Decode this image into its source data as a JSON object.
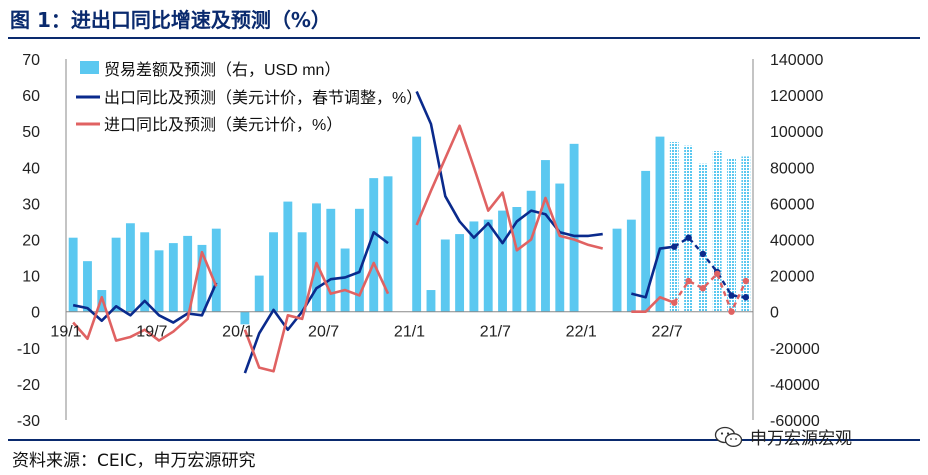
{
  "figure": {
    "title": "图 1：进出口同比增速及预测（%）",
    "source": "资料来源：CEIC，申万宏源研究",
    "watermark": "申万宏源宏观",
    "watermark_icon": "wechat-icon"
  },
  "chart_data": {
    "type": "bar-line",
    "left_axis": {
      "min": -30,
      "max": 70,
      "ticks": [
        -30,
        -20,
        -10,
        0,
        10,
        20,
        30,
        40,
        50,
        60,
        70
      ]
    },
    "right_axis": {
      "min": -60000,
      "max": 140000,
      "ticks": [
        "-60000",
        "-40000",
        "-20000",
        "0",
        "20000",
        "40000",
        "60000",
        "80000",
        "100000",
        "120000",
        "140000"
      ]
    },
    "x_tick_labels": [
      "19/1",
      "19/7",
      "20/1",
      "20/7",
      "21/1",
      "21/7",
      "22/1",
      "22/7"
    ],
    "months": [
      "2019-01",
      "2019-02",
      "2019-03",
      "2019-04",
      "2019-05",
      "2019-06",
      "2019-07",
      "2019-08",
      "2019-09",
      "2019-10",
      "2019-11",
      "2019-12",
      "2020-01",
      "2020-02",
      "2020-03",
      "2020-04",
      "2020-05",
      "2020-06",
      "2020-07",
      "2020-08",
      "2020-09",
      "2020-10",
      "2020-11",
      "2020-12",
      "2021-01",
      "2021-02",
      "2021-03",
      "2021-04",
      "2021-05",
      "2021-06",
      "2021-07",
      "2021-08",
      "2021-09",
      "2021-10",
      "2021-11",
      "2021-12",
      "2022-01",
      "2022-02",
      "2022-03",
      "2022-04",
      "2022-05",
      "2022-06",
      "2022-07",
      "2022-08",
      "2022-09",
      "2022-10",
      "2022-11",
      "2022-12"
    ],
    "forecast_start_index": 42,
    "legend": [
      "贸易差额及预测（右，USD mn）",
      "出口同比及预测（美元计价，春节调整，%）",
      "进口同比及预测（美元计价，%）"
    ],
    "series": [
      {
        "name": "贸易差额及预测（右，USD mn）",
        "axis": "right",
        "kind": "bar",
        "color": "#5bc8f0",
        "values": [
          41000,
          28000,
          12000,
          41000,
          49000,
          44000,
          34000,
          38000,
          42000,
          37000,
          46000,
          null,
          -7000,
          20000,
          44000,
          61000,
          44000,
          60000,
          57000,
          35000,
          57000,
          74000,
          75000,
          null,
          97000,
          12000,
          40000,
          43000,
          50000,
          51000,
          56000,
          58000,
          67000,
          84000,
          71000,
          93000,
          null,
          null,
          46000,
          51000,
          78000,
          97000,
          94000,
          92000,
          82000,
          89000,
          85000,
          86000
        ]
      },
      {
        "name": "出口同比及预测（美元计价，春节调整，%）",
        "axis": "left",
        "kind": "line",
        "color": "#0a2a8c",
        "values": [
          1.8,
          1.0,
          -2.5,
          1.5,
          -1.0,
          3.0,
          -1.0,
          -3.0,
          -0.5,
          -1.0,
          8.0,
          null,
          -17.0,
          -6.0,
          0.5,
          -5.0,
          0.0,
          6.5,
          9.0,
          9.5,
          11.0,
          22.0,
          19.0,
          null,
          61.0,
          52.0,
          32.0,
          25.0,
          20.5,
          24.5,
          19.0,
          25.0,
          28.0,
          27.0,
          22.0,
          21.0,
          21.0,
          21.5,
          null,
          5.0,
          4.0,
          17.5,
          18.0,
          20.5,
          16.0,
          11.0,
          4.5,
          4.0
        ]
      },
      {
        "name": "进口同比及预测（美元计价，%）",
        "axis": "left",
        "kind": "line",
        "color": "#e06262",
        "values": [
          -3.0,
          -7.5,
          4.0,
          -8.0,
          -7.0,
          -5.0,
          -8.0,
          -5.5,
          -2.0,
          16.5,
          7.0,
          null,
          -5.0,
          -15.5,
          -16.5,
          -1.0,
          -2.0,
          13.5,
          5.0,
          6.0,
          4.5,
          13.5,
          5.0,
          null,
          24.0,
          33.5,
          42.5,
          51.5,
          40.0,
          28.0,
          33.0,
          17.0,
          20.0,
          31.5,
          21.0,
          20.0,
          18.5,
          17.5,
          null,
          0.0,
          0.0,
          4.0,
          2.5,
          8.5,
          6.5,
          10.5,
          0.0,
          8.5
        ]
      }
    ]
  }
}
